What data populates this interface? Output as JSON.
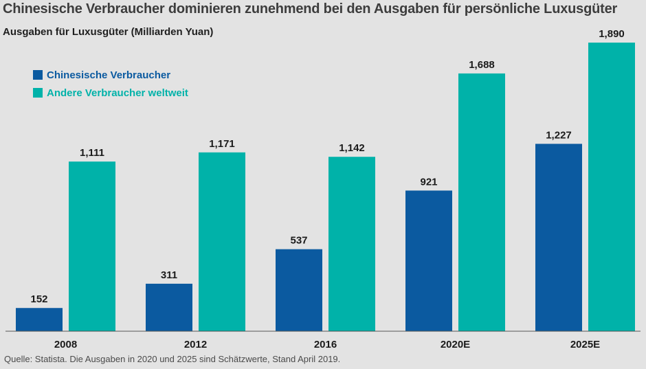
{
  "chart_data": {
    "type": "bar",
    "title": "Chinesische Verbraucher dominieren zunehmend bei den Ausgaben für persönliche Luxusgüter",
    "ylabel": "Ausgaben für Luxusgüter (Milliarden Yuan)",
    "xlabel": "",
    "categories": [
      "2008",
      "2012",
      "2016",
      "2020E",
      "2025E"
    ],
    "series": [
      {
        "name": "Chinesische Verbraucher",
        "color": "#0b5aa0",
        "values": [
          152,
          311,
          537,
          921,
          1227
        ],
        "labels": [
          "152",
          "311",
          "537",
          "921",
          "1,227"
        ]
      },
      {
        "name": "Andere Verbraucher weltweit",
        "color": "#00b2a9",
        "values": [
          1111,
          1171,
          1142,
          1688,
          1890
        ],
        "labels": [
          "1,111",
          "1,171",
          "1,142",
          "1,688",
          "1,890"
        ]
      }
    ],
    "ylim": [
      0,
      1890
    ],
    "grid": false,
    "legend_position": "top-left"
  },
  "footer": "Quelle: Statista. Die Ausgaben in 2020 und 2025 sind Schätzwerte, Stand April 2019."
}
